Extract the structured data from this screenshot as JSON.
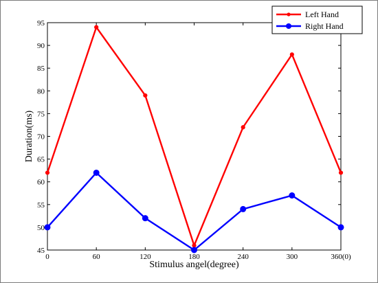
{
  "chart_data": {
    "type": "line",
    "xlabel": "Stimulus angel(degree)",
    "ylabel": "Duration(ms)",
    "x": [
      0,
      60,
      120,
      180,
      240,
      300,
      360
    ],
    "x_tick_labels": [
      "0",
      "60",
      "120",
      "180",
      "240",
      "300",
      "360(0)"
    ],
    "xlim": [
      0,
      360
    ],
    "ylim": [
      45,
      95
    ],
    "y_ticks": [
      45,
      50,
      55,
      60,
      65,
      70,
      75,
      80,
      85,
      90,
      95
    ],
    "grid": false,
    "legend_position": "top-right",
    "series": [
      {
        "name": "Left Hand",
        "color": "#ff0000",
        "values": [
          62,
          94,
          79,
          46,
          72,
          88,
          62
        ]
      },
      {
        "name": "Right Hand",
        "color": "#0000ff",
        "values": [
          50,
          62,
          52,
          45,
          54,
          57,
          50
        ]
      }
    ]
  }
}
